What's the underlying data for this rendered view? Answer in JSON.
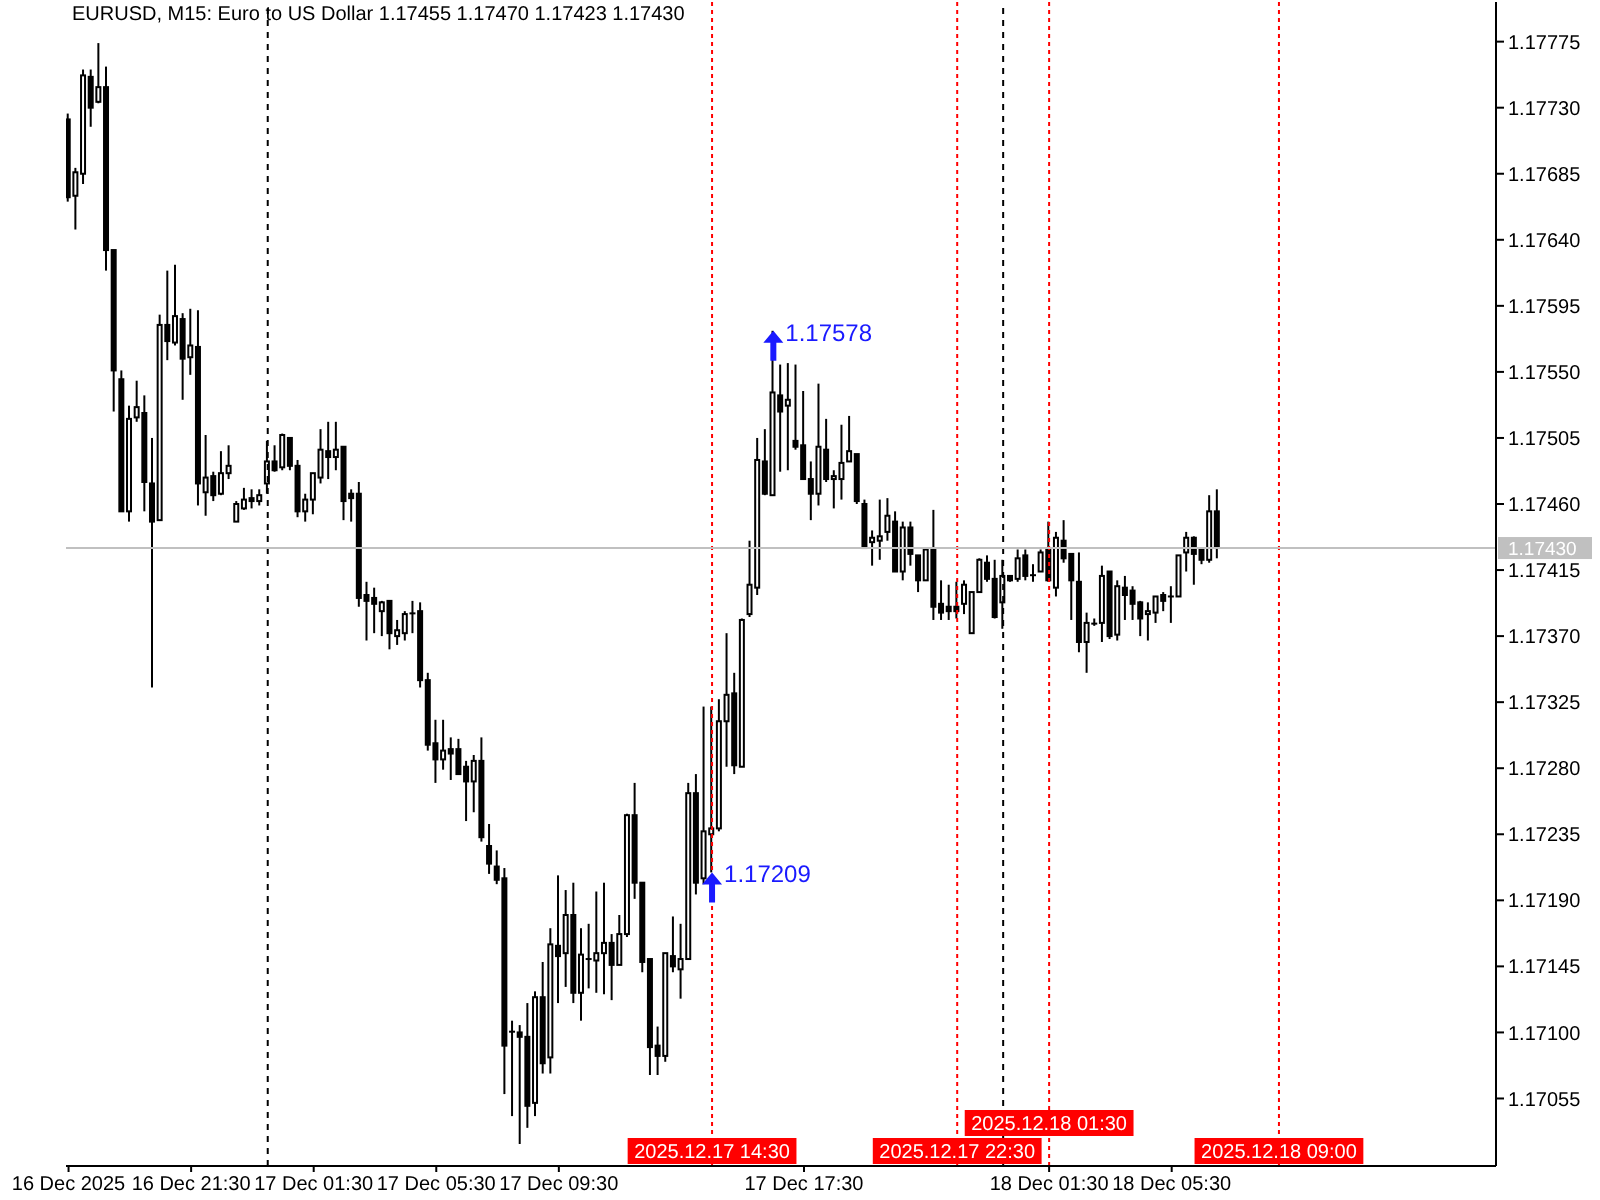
{
  "chart_data": {
    "type": "candlestick",
    "title": "EURUSD, M15: Euro to US Dollar 1.17455 1.17470 1.17423 1.17430",
    "color": "#000000",
    "x": [
      "2025-12-16T17:30",
      "2025-12-16T17:45",
      "2025-12-16T18:00",
      "2025-12-16T18:15",
      "2025-12-16T18:30",
      "2025-12-16T18:45",
      "2025-12-16T19:00",
      "2025-12-16T19:15",
      "2025-12-16T19:30",
      "2025-12-16T19:45",
      "2025-12-16T20:00",
      "2025-12-16T20:15",
      "2025-12-16T20:30",
      "2025-12-16T20:45",
      "2025-12-16T21:00",
      "2025-12-16T21:15",
      "2025-12-16T21:30",
      "2025-12-16T21:45",
      "2025-12-16T22:00",
      "2025-12-16T22:15",
      "2025-12-16T22:30",
      "2025-12-16T22:45",
      "2025-12-16T23:00",
      "2025-12-16T23:15",
      "2025-12-16T23:30",
      "2025-12-16T23:45",
      "2025-12-17T00:00",
      "2025-12-17T00:15",
      "2025-12-17T00:30",
      "2025-12-17T00:45",
      "2025-12-17T01:00",
      "2025-12-17T01:15",
      "2025-12-17T01:30",
      "2025-12-17T01:45",
      "2025-12-17T02:00",
      "2025-12-17T02:15",
      "2025-12-17T02:30",
      "2025-12-17T02:45",
      "2025-12-17T03:00",
      "2025-12-17T03:15",
      "2025-12-17T03:30",
      "2025-12-17T03:45",
      "2025-12-17T04:00",
      "2025-12-17T04:15",
      "2025-12-17T04:30",
      "2025-12-17T04:45",
      "2025-12-17T05:00",
      "2025-12-17T05:15",
      "2025-12-17T05:30",
      "2025-12-17T05:45",
      "2025-12-17T06:00",
      "2025-12-17T06:15",
      "2025-12-17T06:30",
      "2025-12-17T06:45",
      "2025-12-17T07:00",
      "2025-12-17T07:15",
      "2025-12-17T07:30",
      "2025-12-17T07:45",
      "2025-12-17T08:00",
      "2025-12-17T08:15",
      "2025-12-17T08:30",
      "2025-12-17T08:45",
      "2025-12-17T09:00",
      "2025-12-17T09:15",
      "2025-12-17T09:30",
      "2025-12-17T09:45",
      "2025-12-17T10:00",
      "2025-12-17T10:15",
      "2025-12-17T10:30",
      "2025-12-17T10:45",
      "2025-12-17T11:00",
      "2025-12-17T11:15",
      "2025-12-17T11:30",
      "2025-12-17T11:45",
      "2025-12-17T12:00",
      "2025-12-17T12:15",
      "2025-12-17T12:30",
      "2025-12-17T12:45",
      "2025-12-17T13:00",
      "2025-12-17T13:15",
      "2025-12-17T13:30",
      "2025-12-17T13:45",
      "2025-12-17T14:00",
      "2025-12-17T14:15",
      "2025-12-17T14:30",
      "2025-12-17T14:45",
      "2025-12-17T15:00",
      "2025-12-17T15:15",
      "2025-12-17T15:30",
      "2025-12-17T15:45",
      "2025-12-17T16:00",
      "2025-12-17T16:15",
      "2025-12-17T16:30",
      "2025-12-17T16:45",
      "2025-12-17T17:00",
      "2025-12-17T17:15",
      "2025-12-17T17:30",
      "2025-12-17T17:45",
      "2025-12-17T18:00",
      "2025-12-17T18:15",
      "2025-12-17T18:30",
      "2025-12-17T18:45",
      "2025-12-17T19:00",
      "2025-12-17T19:15",
      "2025-12-17T19:30",
      "2025-12-17T19:45",
      "2025-12-17T20:00",
      "2025-12-17T20:15",
      "2025-12-17T20:30",
      "2025-12-17T20:45",
      "2025-12-17T21:00",
      "2025-12-17T21:15",
      "2025-12-17T21:30",
      "2025-12-17T21:45",
      "2025-12-17T22:00",
      "2025-12-17T22:15",
      "2025-12-17T22:30",
      "2025-12-17T22:45",
      "2025-12-17T23:00",
      "2025-12-17T23:15",
      "2025-12-17T23:30",
      "2025-12-17T23:45",
      "2025-12-18T00:00",
      "2025-12-18T00:15",
      "2025-12-18T00:30",
      "2025-12-18T00:45",
      "2025-12-18T01:00",
      "2025-12-18T01:15",
      "2025-12-18T01:30",
      "2025-12-18T01:45",
      "2025-12-18T02:00",
      "2025-12-18T02:15",
      "2025-12-18T02:30",
      "2025-12-18T02:45",
      "2025-12-18T03:00",
      "2025-12-18T03:15",
      "2025-12-18T03:30",
      "2025-12-18T03:45",
      "2025-12-18T04:00",
      "2025-12-18T04:15",
      "2025-12-18T04:30",
      "2025-12-18T04:45",
      "2025-12-18T05:00",
      "2025-12-18T05:15",
      "2025-12-18T05:30",
      "2025-12-18T05:45",
      "2025-12-18T06:00",
      "2025-12-18T06:15",
      "2025-12-18T06:30",
      "2025-12-18T06:45",
      "2025-12-18T07:00"
    ],
    "ohlc": [
      [
        1.17722,
        1.17726,
        1.17666,
        1.17669
      ],
      [
        1.1767,
        1.17689,
        1.17647,
        1.17686
      ],
      [
        1.17685,
        1.17756,
        1.17678,
        1.17752
      ],
      [
        1.17751,
        1.17756,
        1.17717,
        1.1773
      ],
      [
        1.17734,
        1.17774,
        1.17733,
        1.17744
      ],
      [
        1.17744,
        1.17758,
        1.17619,
        1.17633
      ],
      [
        1.17633,
        1.17633,
        1.17523,
        1.17551
      ],
      [
        1.17545,
        1.17551,
        1.17455,
        1.17455
      ],
      [
        1.17455,
        1.17527,
        1.17448,
        1.17518
      ],
      [
        1.17519,
        1.17544,
        1.17516,
        1.17526
      ],
      [
        1.17522,
        1.17534,
        1.17455,
        1.17475
      ],
      [
        1.17474,
        1.17505,
        1.17335,
        1.17448
      ],
      [
        1.17449,
        1.17589,
        1.17449,
        1.17582
      ],
      [
        1.17582,
        1.17619,
        1.17558,
        1.17571
      ],
      [
        1.1757,
        1.17623,
        1.17568,
        1.17588
      ],
      [
        1.17586,
        1.1759,
        1.17531,
        1.17559
      ],
      [
        1.1756,
        1.17593,
        1.17548,
        1.17568
      ],
      [
        1.17567,
        1.17592,
        1.17459,
        1.17474
      ],
      [
        1.17468,
        1.17507,
        1.17452,
        1.17478
      ],
      [
        1.17479,
        1.17482,
        1.17462,
        1.17466
      ],
      [
        1.17467,
        1.17496,
        1.17466,
        1.17481
      ],
      [
        1.17481,
        1.175,
        1.17477,
        1.17486
      ],
      [
        1.17448,
        1.17462,
        1.17448,
        1.1746
      ],
      [
        1.17457,
        1.17471,
        1.17456,
        1.17463
      ],
      [
        1.17464,
        1.1747,
        1.17457,
        1.17462
      ],
      [
        1.17462,
        1.1747,
        1.17459,
        1.17466
      ],
      [
        1.17474,
        1.17503,
        1.17467,
        1.17489
      ],
      [
        1.17489,
        1.175,
        1.17482,
        1.17483
      ],
      [
        1.17485,
        1.17508,
        1.17483,
        1.17507
      ],
      [
        1.17505,
        1.17505,
        1.17483,
        1.17486
      ],
      [
        1.17486,
        1.1749,
        1.17451,
        1.17455
      ],
      [
        1.17455,
        1.17467,
        1.17448,
        1.17463
      ],
      [
        1.17463,
        1.17481,
        1.17453,
        1.17481
      ],
      [
        1.17478,
        1.17511,
        1.17474,
        1.17497
      ],
      [
        1.17496,
        1.17516,
        1.17477,
        1.17492
      ],
      [
        1.17492,
        1.17516,
        1.17483,
        1.17497
      ],
      [
        1.17499,
        1.17499,
        1.17449,
        1.17462
      ],
      [
        1.17467,
        1.1747,
        1.17448,
        1.17464
      ],
      [
        1.17467,
        1.17475,
        1.1739,
        1.17396
      ],
      [
        1.17398,
        1.17407,
        1.17367,
        1.17394
      ],
      [
        1.17396,
        1.17403,
        1.17372,
        1.17392
      ],
      [
        1.17387,
        1.17394,
        1.1737,
        1.17393
      ],
      [
        1.17394,
        1.17394,
        1.17361,
        1.17372
      ],
      [
        1.1737,
        1.17381,
        1.17364,
        1.17374
      ],
      [
        1.17372,
        1.17387,
        1.17367,
        1.17385
      ],
      [
        1.17386,
        1.17394,
        1.17372,
        1.17385
      ],
      [
        1.17387,
        1.17393,
        1.17335,
        1.1734
      ],
      [
        1.1734,
        1.17345,
        1.17292,
        1.17296
      ],
      [
        1.17297,
        1.17313,
        1.1727,
        1.17286
      ],
      [
        1.17286,
        1.17313,
        1.17279,
        1.17292
      ],
      [
        1.17293,
        1.17301,
        1.17272,
        1.1729
      ],
      [
        1.17293,
        1.173,
        1.17276,
        1.17276
      ],
      [
        1.17281,
        1.17285,
        1.17244,
        1.17271
      ],
      [
        1.17271,
        1.17289,
        1.1725,
        1.17285
      ],
      [
        1.17285,
        1.17301,
        1.1723,
        1.17233
      ],
      [
        1.17227,
        1.17242,
        1.17208,
        1.17215
      ],
      [
        1.17213,
        1.17224,
        1.17201,
        1.17204
      ],
      [
        1.17205,
        1.17212,
        1.17058,
        1.17091
      ],
      [
        1.171,
        1.17108,
        1.17043,
        1.17101
      ],
      [
        1.171,
        1.17105,
        1.17024,
        1.17097
      ],
      [
        1.17097,
        1.1712,
        1.17035,
        1.1705
      ],
      [
        1.17052,
        1.17128,
        1.17043,
        1.17124
      ],
      [
        1.17124,
        1.17148,
        1.17072,
        1.17079
      ],
      [
        1.17083,
        1.17171,
        1.17072,
        1.1716
      ],
      [
        1.17159,
        1.17207,
        1.1712,
        1.17152
      ],
      [
        1.17154,
        1.17197,
        1.17131,
        1.1718
      ],
      [
        1.1718,
        1.17202,
        1.1712,
        1.17127
      ],
      [
        1.17127,
        1.17171,
        1.17108,
        1.17153
      ],
      [
        1.1715,
        1.17174,
        1.1713,
        1.1715
      ],
      [
        1.17149,
        1.17196,
        1.17127,
        1.17154
      ],
      [
        1.17154,
        1.17202,
        1.17126,
        1.17161
      ],
      [
        1.17161,
        1.17167,
        1.17122,
        1.17146
      ],
      [
        1.17146,
        1.1718,
        1.17146,
        1.17167
      ],
      [
        1.17167,
        1.17249,
        1.17165,
        1.17248
      ],
      [
        1.17248,
        1.1727,
        1.17191,
        1.17202
      ],
      [
        1.17202,
        1.17202,
        1.17141,
        1.17148
      ],
      [
        1.1715,
        1.1715,
        1.17071,
        1.1709
      ],
      [
        1.17091,
        1.17104,
        1.17071,
        1.17084
      ],
      [
        1.17084,
        1.17154,
        1.1708,
        1.17154
      ],
      [
        1.17152,
        1.17179,
        1.17141,
        1.17145
      ],
      [
        1.17143,
        1.17174,
        1.17123,
        1.1715
      ],
      [
        1.1715,
        1.1727,
        1.1715,
        1.17263
      ],
      [
        1.17263,
        1.17276,
        1.17194,
        1.17202
      ],
      [
        1.17205,
        1.17322,
        1.17201,
        1.17237
      ],
      [
        1.17235,
        1.17322,
        1.17209,
        1.17239
      ],
      [
        1.17239,
        1.17327,
        1.17237,
        1.17312
      ],
      [
        1.17312,
        1.17372,
        1.17281,
        1.1733
      ],
      [
        1.17331,
        1.17345,
        1.17276,
        1.17282
      ],
      [
        1.17281,
        1.17382,
        1.17281,
        1.17381
      ],
      [
        1.17385,
        1.17435,
        1.17383,
        1.17405
      ],
      [
        1.17403,
        1.17505,
        1.17398,
        1.1749
      ],
      [
        1.17489,
        1.17511,
        1.17466,
        1.17467
      ],
      [
        1.17466,
        1.17578,
        1.17466,
        1.17536
      ],
      [
        1.17534,
        1.17555,
        1.17482,
        1.17523
      ],
      [
        1.17527,
        1.17556,
        1.17483,
        1.17531
      ],
      [
        1.17503,
        1.17555,
        1.17497,
        1.17499
      ],
      [
        1.175,
        1.17537,
        1.17477,
        1.17477
      ],
      [
        1.17477,
        1.17489,
        1.17449,
        1.17467
      ],
      [
        1.17467,
        1.17542,
        1.17459,
        1.17499
      ],
      [
        1.17497,
        1.17518,
        1.17475,
        1.17477
      ],
      [
        1.17477,
        1.17483,
        1.17457,
        1.17479
      ],
      [
        1.17477,
        1.17514,
        1.17463,
        1.17488
      ],
      [
        1.17489,
        1.1752,
        1.17489,
        1.17496
      ],
      [
        1.17494,
        1.17494,
        1.1746,
        1.17462
      ],
      [
        1.1746,
        1.17463,
        1.1743,
        1.1743
      ],
      [
        1.17434,
        1.17442,
        1.17418,
        1.17437
      ],
      [
        1.17435,
        1.17463,
        1.17422,
        1.17438
      ],
      [
        1.17441,
        1.17464,
        1.17435,
        1.17452
      ],
      [
        1.17448,
        1.17455,
        1.17414,
        1.17414
      ],
      [
        1.17414,
        1.17448,
        1.17408,
        1.17444
      ],
      [
        1.17444,
        1.17448,
        1.17418,
        1.17426
      ],
      [
        1.17425,
        1.17425,
        1.174,
        1.17408
      ],
      [
        1.17408,
        1.17429,
        1.17408,
        1.17429
      ],
      [
        1.17429,
        1.17456,
        1.17381,
        1.1739
      ],
      [
        1.17392,
        1.17408,
        1.17381,
        1.17386
      ],
      [
        1.1739,
        1.17405,
        1.17381,
        1.17387
      ],
      [
        1.1739,
        1.17407,
        1.17382,
        1.17387
      ],
      [
        1.17392,
        1.17408,
        1.17385,
        1.17405
      ],
      [
        1.17372,
        1.174,
        1.17372,
        1.174
      ],
      [
        1.174,
        1.17423,
        1.174,
        1.17422
      ],
      [
        1.1742,
        1.17425,
        1.17407,
        1.17409
      ],
      [
        1.17409,
        1.17422,
        1.17382,
        1.17383
      ],
      [
        1.17393,
        1.17422,
        1.17375,
        1.17411
      ],
      [
        1.17411,
        1.17411,
        1.17407,
        1.17408
      ],
      [
        1.17409,
        1.17429,
        1.17407,
        1.17423
      ],
      [
        1.17425,
        1.17429,
        1.17408,
        1.17411
      ],
      [
        1.17412,
        1.17419,
        1.17407,
        1.17411
      ],
      [
        1.17414,
        1.17429,
        1.17414,
        1.17427
      ],
      [
        1.17429,
        1.17448,
        1.17407,
        1.17408
      ],
      [
        1.17403,
        1.17441,
        1.17397,
        1.17437
      ],
      [
        1.17435,
        1.17449,
        1.1742,
        1.17423
      ],
      [
        1.17426,
        1.17426,
        1.17381,
        1.17408
      ],
      [
        1.17407,
        1.17427,
        1.17359,
        1.17366
      ],
      [
        1.17366,
        1.17386,
        1.17345,
        1.17379
      ],
      [
        1.17378,
        1.17382,
        1.17377,
        1.17379
      ],
      [
        1.17379,
        1.17418,
        1.17366,
        1.17411
      ],
      [
        1.17414,
        1.17414,
        1.17368,
        1.1737
      ],
      [
        1.17371,
        1.17408,
        1.17367,
        1.17404
      ],
      [
        1.17403,
        1.17411,
        1.17381,
        1.17398
      ],
      [
        1.17401,
        1.17404,
        1.17381,
        1.17392
      ],
      [
        1.17393,
        1.17394,
        1.1737,
        1.17382
      ],
      [
        1.17385,
        1.17393,
        1.17367,
        1.17387
      ],
      [
        1.17386,
        1.17397,
        1.17379,
        1.17397
      ],
      [
        1.17398,
        1.174,
        1.17387,
        1.17394
      ],
      [
        1.17397,
        1.17404,
        1.17379,
        1.17397
      ],
      [
        1.17397,
        1.17425,
        1.17397,
        1.17425
      ],
      [
        1.17427,
        1.17441,
        1.17414,
        1.17437
      ],
      [
        1.17437,
        1.17438,
        1.17405,
        1.17426
      ],
      [
        1.17429,
        1.17429,
        1.17419,
        1.17422
      ],
      [
        1.17422,
        1.17466,
        1.1742,
        1.17455
      ],
      [
        1.17455,
        1.1747,
        1.17423,
        1.1743
      ]
    ],
    "xlim": [
      "2025-12-16T17:25",
      "2025-12-18T16:05"
    ],
    "xticks": [
      {
        "value": "2025-12-16T17:30",
        "label": "16 Dec 2025"
      },
      {
        "value": "2025-12-16T21:30",
        "label": "16 Dec 21:30"
      },
      {
        "value": "2025-12-17T01:30",
        "label": "17 Dec 01:30"
      },
      {
        "value": "2025-12-17T05:30",
        "label": "17 Dec 05:30"
      },
      {
        "value": "2025-12-17T09:30",
        "label": "17 Dec 09:30"
      },
      {
        "value": "2025-12-17T17:30",
        "label": "17 Dec 17:30"
      },
      {
        "value": "2025-12-18T01:30",
        "label": "18 Dec 01:30"
      },
      {
        "value": "2025-12-18T05:30",
        "label": "18 Dec 05:30"
      }
    ],
    "ylim": [
      1.17009,
      1.17802
    ],
    "yticks": [
      1.17055,
      {
        "value": 1.171,
        "label": "1.17100"
      },
      1.17145,
      {
        "value": 1.1719,
        "label": "1.17190"
      },
      1.17235,
      {
        "value": 1.1728,
        "label": "1.17280"
      },
      1.17325,
      {
        "value": 1.1737,
        "label": "1.17370"
      },
      1.17415,
      {
        "value": 1.1746,
        "label": "1.17460"
      },
      1.17505,
      {
        "value": 1.1755,
        "label": "1.17550"
      },
      1.17595,
      {
        "value": 1.1764,
        "label": "1.17640"
      },
      1.17685,
      {
        "value": 1.1773,
        "label": "1.17730"
      },
      1.17775
    ],
    "ref_lines": [
      {
        "axis": "x",
        "value": "2025-12-17T00:00",
        "color": "#000000",
        "line_style": "dashed"
      },
      {
        "axis": "x",
        "value": "2025-12-18T00:00",
        "color": "#000000",
        "line_style": "dashed"
      },
      {
        "axis": "x",
        "value": "2025-12-17T14:30",
        "label": "2025.12.17 14:30",
        "color": "#ff0000",
        "line_style": "dotted"
      },
      {
        "axis": "x",
        "value": "2025-12-17T22:30",
        "label": "2025.12.17 22:30",
        "color": "#ff0000",
        "line_style": "dotted"
      },
      {
        "axis": "x",
        "value": "2025-12-18T01:30",
        "label": "2025.12.18 01:30",
        "color": "#ff0000",
        "line_style": "dotted"
      },
      {
        "axis": "x",
        "value": "2025-12-18T09:00",
        "label": "2025.12.18 09:00",
        "color": "#ff0000",
        "line_style": "dotted"
      },
      {
        "axis": "y",
        "value": 1.1743,
        "label": "1.17430",
        "color": "#c0c0c0",
        "line_style": "solid"
      }
    ],
    "annotations": [
      {
        "text": "1.17578",
        "x": "2025-12-17T16:30",
        "y": 1.17578
      },
      {
        "text": "1.17209",
        "x": "2025-12-17T14:30",
        "y": 1.17209
      }
    ]
  }
}
